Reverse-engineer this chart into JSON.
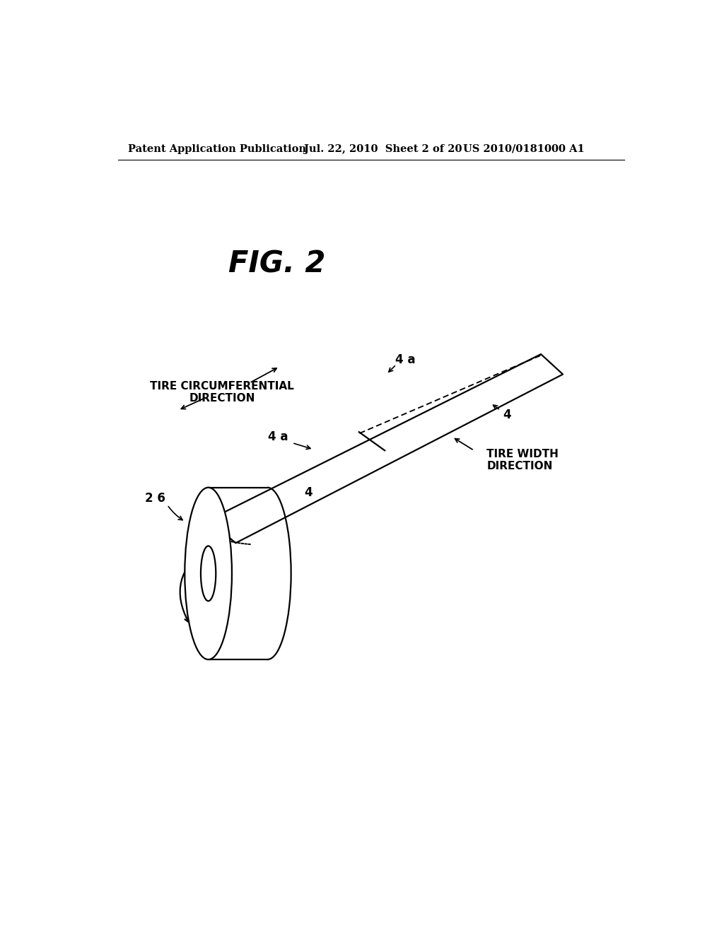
{
  "background_color": "#ffffff",
  "header_left": "Patent Application Publication",
  "header_mid": "Jul. 22, 2010  Sheet 2 of 20",
  "header_right": "US 2010/0181000 A1",
  "fig_label": "FIG. 2",
  "label_26": "2 6",
  "label_4a_upper": "4 a",
  "label_4a_lower": "4 a",
  "label_4_right": "4",
  "label_4_lower": "4",
  "label_circ_dir": "TIRE CIRCUMFERENTIAL\nDIRECTION",
  "label_width_dir": "TIRE WIDTH\nDIRECTION",
  "text_color": "#000000",
  "line_color": "#000000",
  "header_fontsize": 10.5,
  "fig_label_fontsize": 30,
  "annotation_fontsize": 11
}
